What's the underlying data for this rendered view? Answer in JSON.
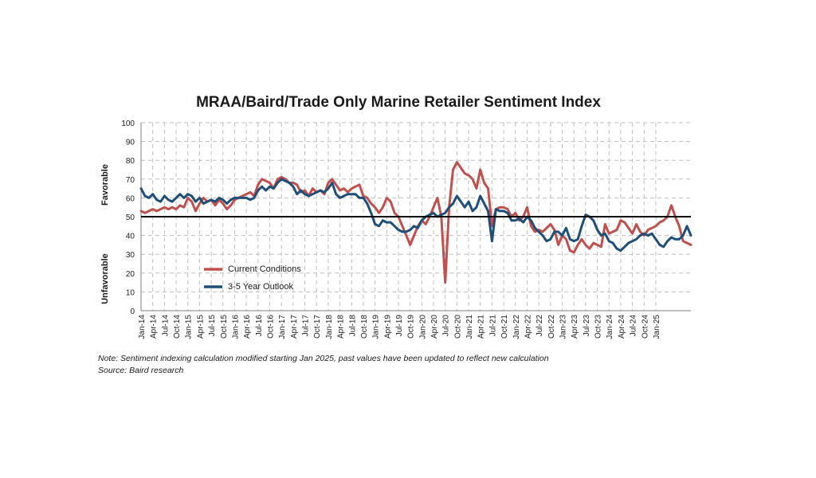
{
  "chart_data": {
    "type": "line",
    "title": "MRAA/Baird/Trade Only Marine Retailer Sentiment Index",
    "ylim": [
      0,
      100
    ],
    "yticks": [
      0,
      10,
      20,
      30,
      40,
      50,
      60,
      70,
      80,
      90,
      100
    ],
    "reference_line": 50,
    "ylabel_top": "Favorable",
    "ylabel_bottom": "Unfavorable",
    "x_tick_labels": [
      "Jan-14",
      "Apr-14",
      "Jul-14",
      "Oct-14",
      "Jan-15",
      "Apr-15",
      "Jul-15",
      "Oct-15",
      "Jan-16",
      "Apr-16",
      "Jul-16",
      "Oct-16",
      "Jan-17",
      "Apr-17",
      "Jul-17",
      "Oct-17",
      "Jan-18",
      "Apr-18",
      "Jul-18",
      "Oct-18",
      "Jan-19",
      "Apr-19",
      "Jul-19",
      "Oct-19",
      "Jan-20",
      "Apr-20",
      "Jul-20",
      "Oct-20",
      "Jan-21",
      "Apr-21",
      "Jul-21",
      "Oct-21",
      "Jan-22",
      "Apr-22",
      "Jul-22",
      "Oct-22",
      "Jan-23",
      "Apr-23",
      "Jul-23",
      "Oct-23",
      "Jan-24",
      "Apr-24",
      "Jul-24",
      "Oct-24",
      "Jan-25"
    ],
    "legend_position": "lower-left",
    "series": [
      {
        "name": "Current Conditions",
        "color": "#c0504d",
        "values": [
          53,
          52,
          53,
          54,
          53,
          54,
          55,
          54,
          55,
          54,
          56,
          55,
          60,
          58,
          53,
          57,
          60,
          58,
          59,
          56,
          59,
          57,
          54,
          56,
          59,
          60,
          61,
          62,
          63,
          61,
          67,
          70,
          69,
          68,
          65,
          70,
          71,
          70,
          68,
          68,
          67,
          63,
          64,
          61,
          65,
          63,
          64,
          62,
          68,
          70,
          67,
          64,
          65,
          63,
          65,
          66,
          67,
          61,
          60,
          57,
          55,
          52,
          55,
          60,
          58,
          52,
          50,
          45,
          40,
          35,
          40,
          45,
          48,
          46,
          50,
          55,
          60,
          50,
          15,
          55,
          75,
          79,
          76,
          73,
          72,
          70,
          65,
          75,
          68,
          65,
          45,
          54,
          55,
          55,
          54,
          50,
          52,
          48,
          50,
          55,
          45,
          42,
          43,
          42,
          44,
          46,
          43,
          35,
          40,
          38,
          32,
          31,
          35,
          38,
          35,
          33,
          36,
          35,
          34,
          46,
          41,
          42,
          43,
          48,
          47,
          44,
          41,
          46,
          42,
          40,
          43,
          44,
          45,
          47,
          48,
          50,
          56,
          50,
          45,
          37,
          36,
          35
        ]
      },
      {
        "name": "3-5 Year Outlook",
        "color": "#1f4e79",
        "values": [
          65,
          61,
          60,
          62,
          59,
          58,
          61,
          59,
          58,
          60,
          62,
          60,
          62,
          61,
          58,
          60,
          57,
          58,
          59,
          58,
          60,
          59,
          57,
          59,
          60,
          60,
          60,
          60,
          59,
          60,
          64,
          66,
          64,
          66,
          65,
          68,
          70,
          69,
          68,
          66,
          62,
          64,
          62,
          61,
          62,
          63,
          64,
          63,
          65,
          68,
          62,
          60,
          61,
          62,
          62,
          62,
          60,
          60,
          57,
          52,
          46,
          45,
          48,
          47,
          47,
          45,
          43,
          42,
          42,
          43,
          45,
          44,
          48,
          50,
          51,
          52,
          50,
          51,
          52,
          55,
          57,
          61,
          58,
          55,
          58,
          53,
          55,
          61,
          57,
          53,
          37,
          54,
          53,
          53,
          52,
          48,
          48,
          49,
          47,
          50,
          48,
          44,
          42,
          40,
          37,
          38,
          42,
          42,
          40,
          44,
          38,
          37,
          38,
          45,
          51,
          50,
          48,
          43,
          40,
          41,
          37,
          36,
          33,
          32,
          34,
          36,
          37,
          38,
          40,
          41,
          40,
          41,
          38,
          35,
          34,
          37,
          39,
          38,
          38,
          40,
          45,
          40
        ]
      }
    ]
  },
  "note": "Note: Sentiment indexing calculation modified  starting Jan 2025, past values have been updated to reflect new calculation",
  "source": "Source: Baird research"
}
